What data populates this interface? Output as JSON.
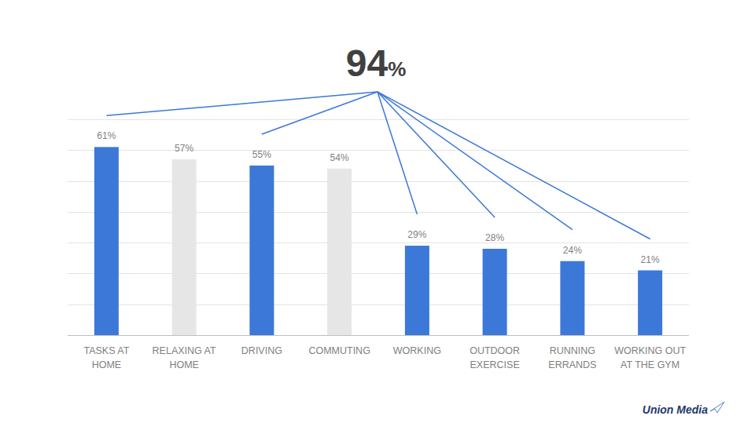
{
  "chart_data": {
    "type": "bar",
    "title": "94%",
    "categories": [
      "TASKS AT HOME",
      "RELAXING AT HOME",
      "DRIVING",
      "COMMUTING",
      "WORKING",
      "OUTDOOR EXERCISE",
      "RUNNING ERRANDS",
      "WORKING OUT AT THE GYM"
    ],
    "values": [
      61,
      57,
      55,
      54,
      29,
      28,
      24,
      21
    ],
    "value_labels": [
      "61%",
      "57%",
      "55%",
      "54%",
      "29%",
      "28%",
      "24%",
      "21%"
    ],
    "colors": [
      "#3c78d8",
      "#e6e6e6",
      "#3c78d8",
      "#e6e6e6",
      "#3c78d8",
      "#3c78d8",
      "#3c78d8",
      "#3c78d8"
    ],
    "ylim": [
      0,
      70
    ],
    "yticks": [
      0,
      10,
      20,
      30,
      40,
      50,
      60,
      70
    ],
    "grid": true,
    "data_labels": true,
    "tick_labels": "x",
    "annotations": [
      "Union Media"
    ]
  }
}
